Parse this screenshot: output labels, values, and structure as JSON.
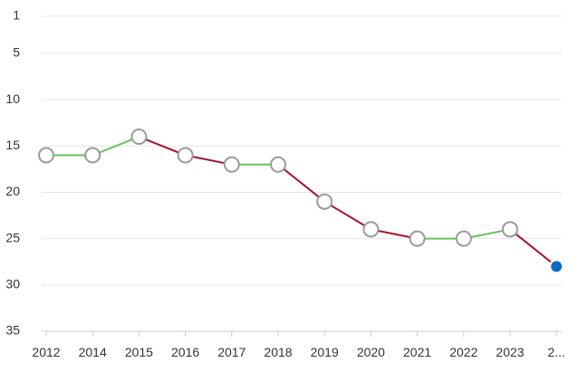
{
  "chart_data": {
    "type": "line",
    "title": "",
    "xlabel": "",
    "ylabel": "",
    "y_inverted": true,
    "ylim": [
      1,
      35
    ],
    "y_ticks": [
      1,
      5,
      10,
      15,
      20,
      25,
      30,
      35
    ],
    "y_tick_labels": [
      "1",
      "5",
      "10",
      "15",
      "20",
      "25",
      "30",
      "35"
    ],
    "grid": "horizontal",
    "categories": [
      "2012",
      "2014",
      "2015",
      "2016",
      "2017",
      "2018",
      "2019",
      "2020",
      "2021",
      "2022",
      "2023",
      "2..."
    ],
    "values": [
      16,
      16,
      14,
      16,
      17,
      17,
      21,
      24,
      25,
      25,
      24,
      28
    ],
    "colors": {
      "improve": "#66c25a",
      "decline": "#a8102e",
      "marker_fill": "#ffffff",
      "marker_stroke": "#9a9a9a",
      "last_marker": "#0d6bc2",
      "grid": "#e6e6e6",
      "axis": "#cccccc"
    }
  }
}
